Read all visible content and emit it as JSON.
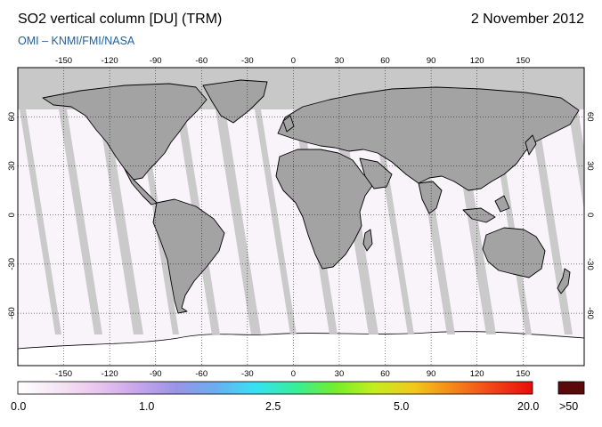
{
  "header": {
    "title": "SO2 vertical column [DU] (TRM)",
    "date": "2 November 2012",
    "credit": "OMI  –  KNMI/FMI/NASA"
  },
  "map": {
    "projection": "equirectangular",
    "lon_ticks": [
      "-150",
      "-120",
      "-90",
      "-60",
      "-30",
      "0",
      "30",
      "60",
      "90",
      "120",
      "150"
    ],
    "lat_ticks": [
      "60",
      "30",
      "0",
      "-30",
      "-60"
    ],
    "colors": {
      "land": "#a3a3a3",
      "no_data": "#c8c8c8",
      "ocean_low": "#f8f4fa",
      "coastline": "#000000"
    }
  },
  "colorbar": {
    "labels": [
      "0.0",
      "1.0",
      "2.5",
      "5.0",
      "20.0",
      ">50"
    ],
    "gradient_colors": [
      "#ffffff",
      "#f6e6f4",
      "#eac6ee",
      "#c8a6ea",
      "#9a94e6",
      "#6aaef2",
      "#36e2f4",
      "#36ee9a",
      "#72ee2c",
      "#c4ee1e",
      "#f2c81e",
      "#f4861a",
      "#f24418",
      "#e80c0c"
    ],
    "overflow_color": "#5a0a0a"
  }
}
